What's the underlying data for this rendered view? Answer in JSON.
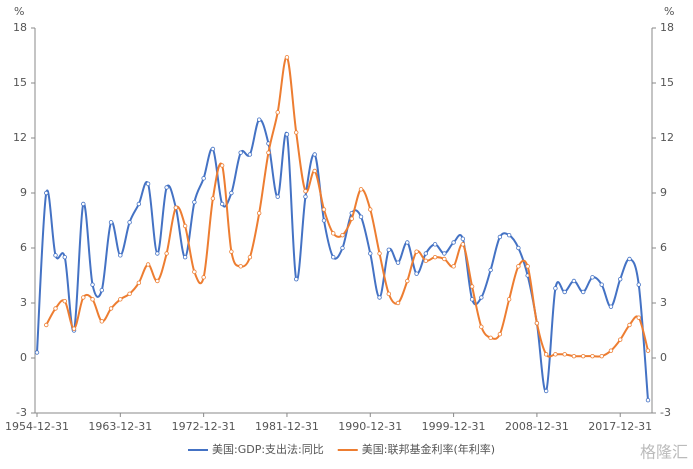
{
  "chart_data": {
    "type": "line",
    "y_label": "%",
    "y2_label": "%",
    "categories": [
      "1954-12-31",
      null,
      null,
      null,
      null,
      null,
      null,
      null,
      null,
      "1963-12-31",
      null,
      null,
      null,
      null,
      null,
      null,
      null,
      null,
      "1972-12-31",
      null,
      null,
      null,
      null,
      null,
      null,
      null,
      null,
      "1981-12-31",
      null,
      null,
      null,
      null,
      null,
      null,
      null,
      null,
      "1990-12-31",
      null,
      null,
      null,
      null,
      null,
      null,
      null,
      null,
      "1999-12-31",
      null,
      null,
      null,
      null,
      null,
      null,
      null,
      null,
      "2008-12-31",
      null,
      null,
      null,
      null,
      null,
      null,
      null,
      null,
      "2017-12-31",
      null,
      null,
      null
    ],
    "series": [
      {
        "name": "美国:GDP:支出法:同比",
        "color": "#4472c4",
        "values": [
          0.3,
          9.0,
          5.6,
          5.5,
          1.5,
          8.4,
          4.0,
          3.7,
          7.4,
          5.6,
          7.4,
          8.4,
          9.5,
          5.7,
          9.3,
          8.2,
          5.5,
          8.5,
          9.8,
          11.4,
          8.4,
          9.0,
          11.2,
          11.1,
          13.0,
          11.7,
          8.8,
          12.2,
          4.3,
          8.8,
          11.1,
          7.5,
          5.5,
          6.0,
          7.9,
          7.7,
          5.7,
          3.3,
          5.9,
          5.2,
          6.3,
          4.6,
          5.7,
          6.2,
          5.7,
          6.3,
          6.5,
          3.2,
          3.3,
          4.8,
          6.6,
          6.7,
          6.0,
          4.5,
          1.9,
          -1.8,
          3.8,
          3.6,
          4.2,
          3.6,
          4.4,
          4.0,
          2.8,
          4.3,
          5.4,
          4.0,
          -2.3
        ]
      },
      {
        "name": "美国:联邦基金利率(年利率)",
        "color": "#ed7d31",
        "axis": "y2",
        "values": [
          null,
          1.8,
          2.7,
          3.1,
          1.6,
          3.3,
          3.2,
          2.0,
          2.7,
          3.2,
          3.5,
          4.1,
          5.1,
          4.2,
          5.7,
          8.2,
          7.2,
          4.7,
          4.4,
          8.7,
          10.5,
          5.8,
          5.0,
          5.5,
          7.9,
          11.2,
          13.4,
          16.4,
          12.3,
          9.1,
          10.2,
          8.1,
          6.8,
          6.7,
          7.6,
          9.2,
          8.1,
          5.7,
          3.5,
          3.0,
          4.2,
          5.8,
          5.3,
          5.5,
          5.4,
          5.0,
          6.2,
          3.9,
          1.7,
          1.1,
          1.3,
          3.2,
          5.0,
          5.0,
          1.9,
          0.2,
          0.2,
          0.2,
          0.1,
          0.1,
          0.1,
          0.1,
          0.4,
          1.0,
          1.8,
          2.2,
          0.4
        ]
      }
    ],
    "ylim": [
      -3,
      18
    ],
    "yticks": [
      -3,
      0,
      3,
      6,
      9,
      12,
      15,
      18
    ],
    "y2lim": [
      -3,
      18
    ],
    "y2ticks": [
      -3,
      0,
      3,
      6,
      9,
      12,
      15,
      18
    ],
    "legend": "bottom",
    "watermark": "格隆汇"
  }
}
